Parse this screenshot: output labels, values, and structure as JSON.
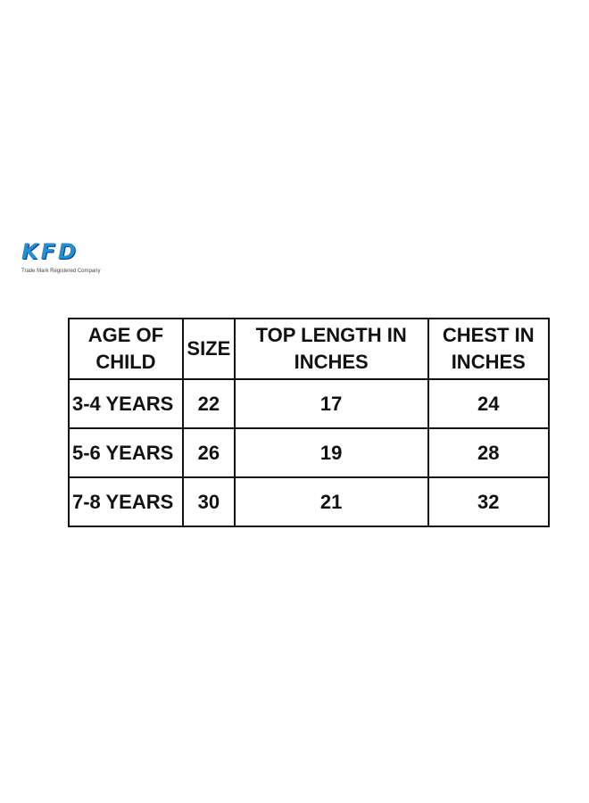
{
  "logo": {
    "text": "KFD",
    "tagline": "Trade Mark Registered Company",
    "colors": [
      "#1f8fd6",
      "#24306e"
    ]
  },
  "table": {
    "headers": [
      "AGE OF CHILD",
      "SIZE",
      "TOP LENGTH IN INCHES",
      "CHEST IN INCHES"
    ],
    "rows": [
      [
        "3-4 YEARS",
        "22",
        "17",
        "24"
      ],
      [
        "5-6 YEARS",
        "26",
        "19",
        "28"
      ],
      [
        "7-8 YEARS",
        "30",
        "21",
        "32"
      ]
    ]
  }
}
